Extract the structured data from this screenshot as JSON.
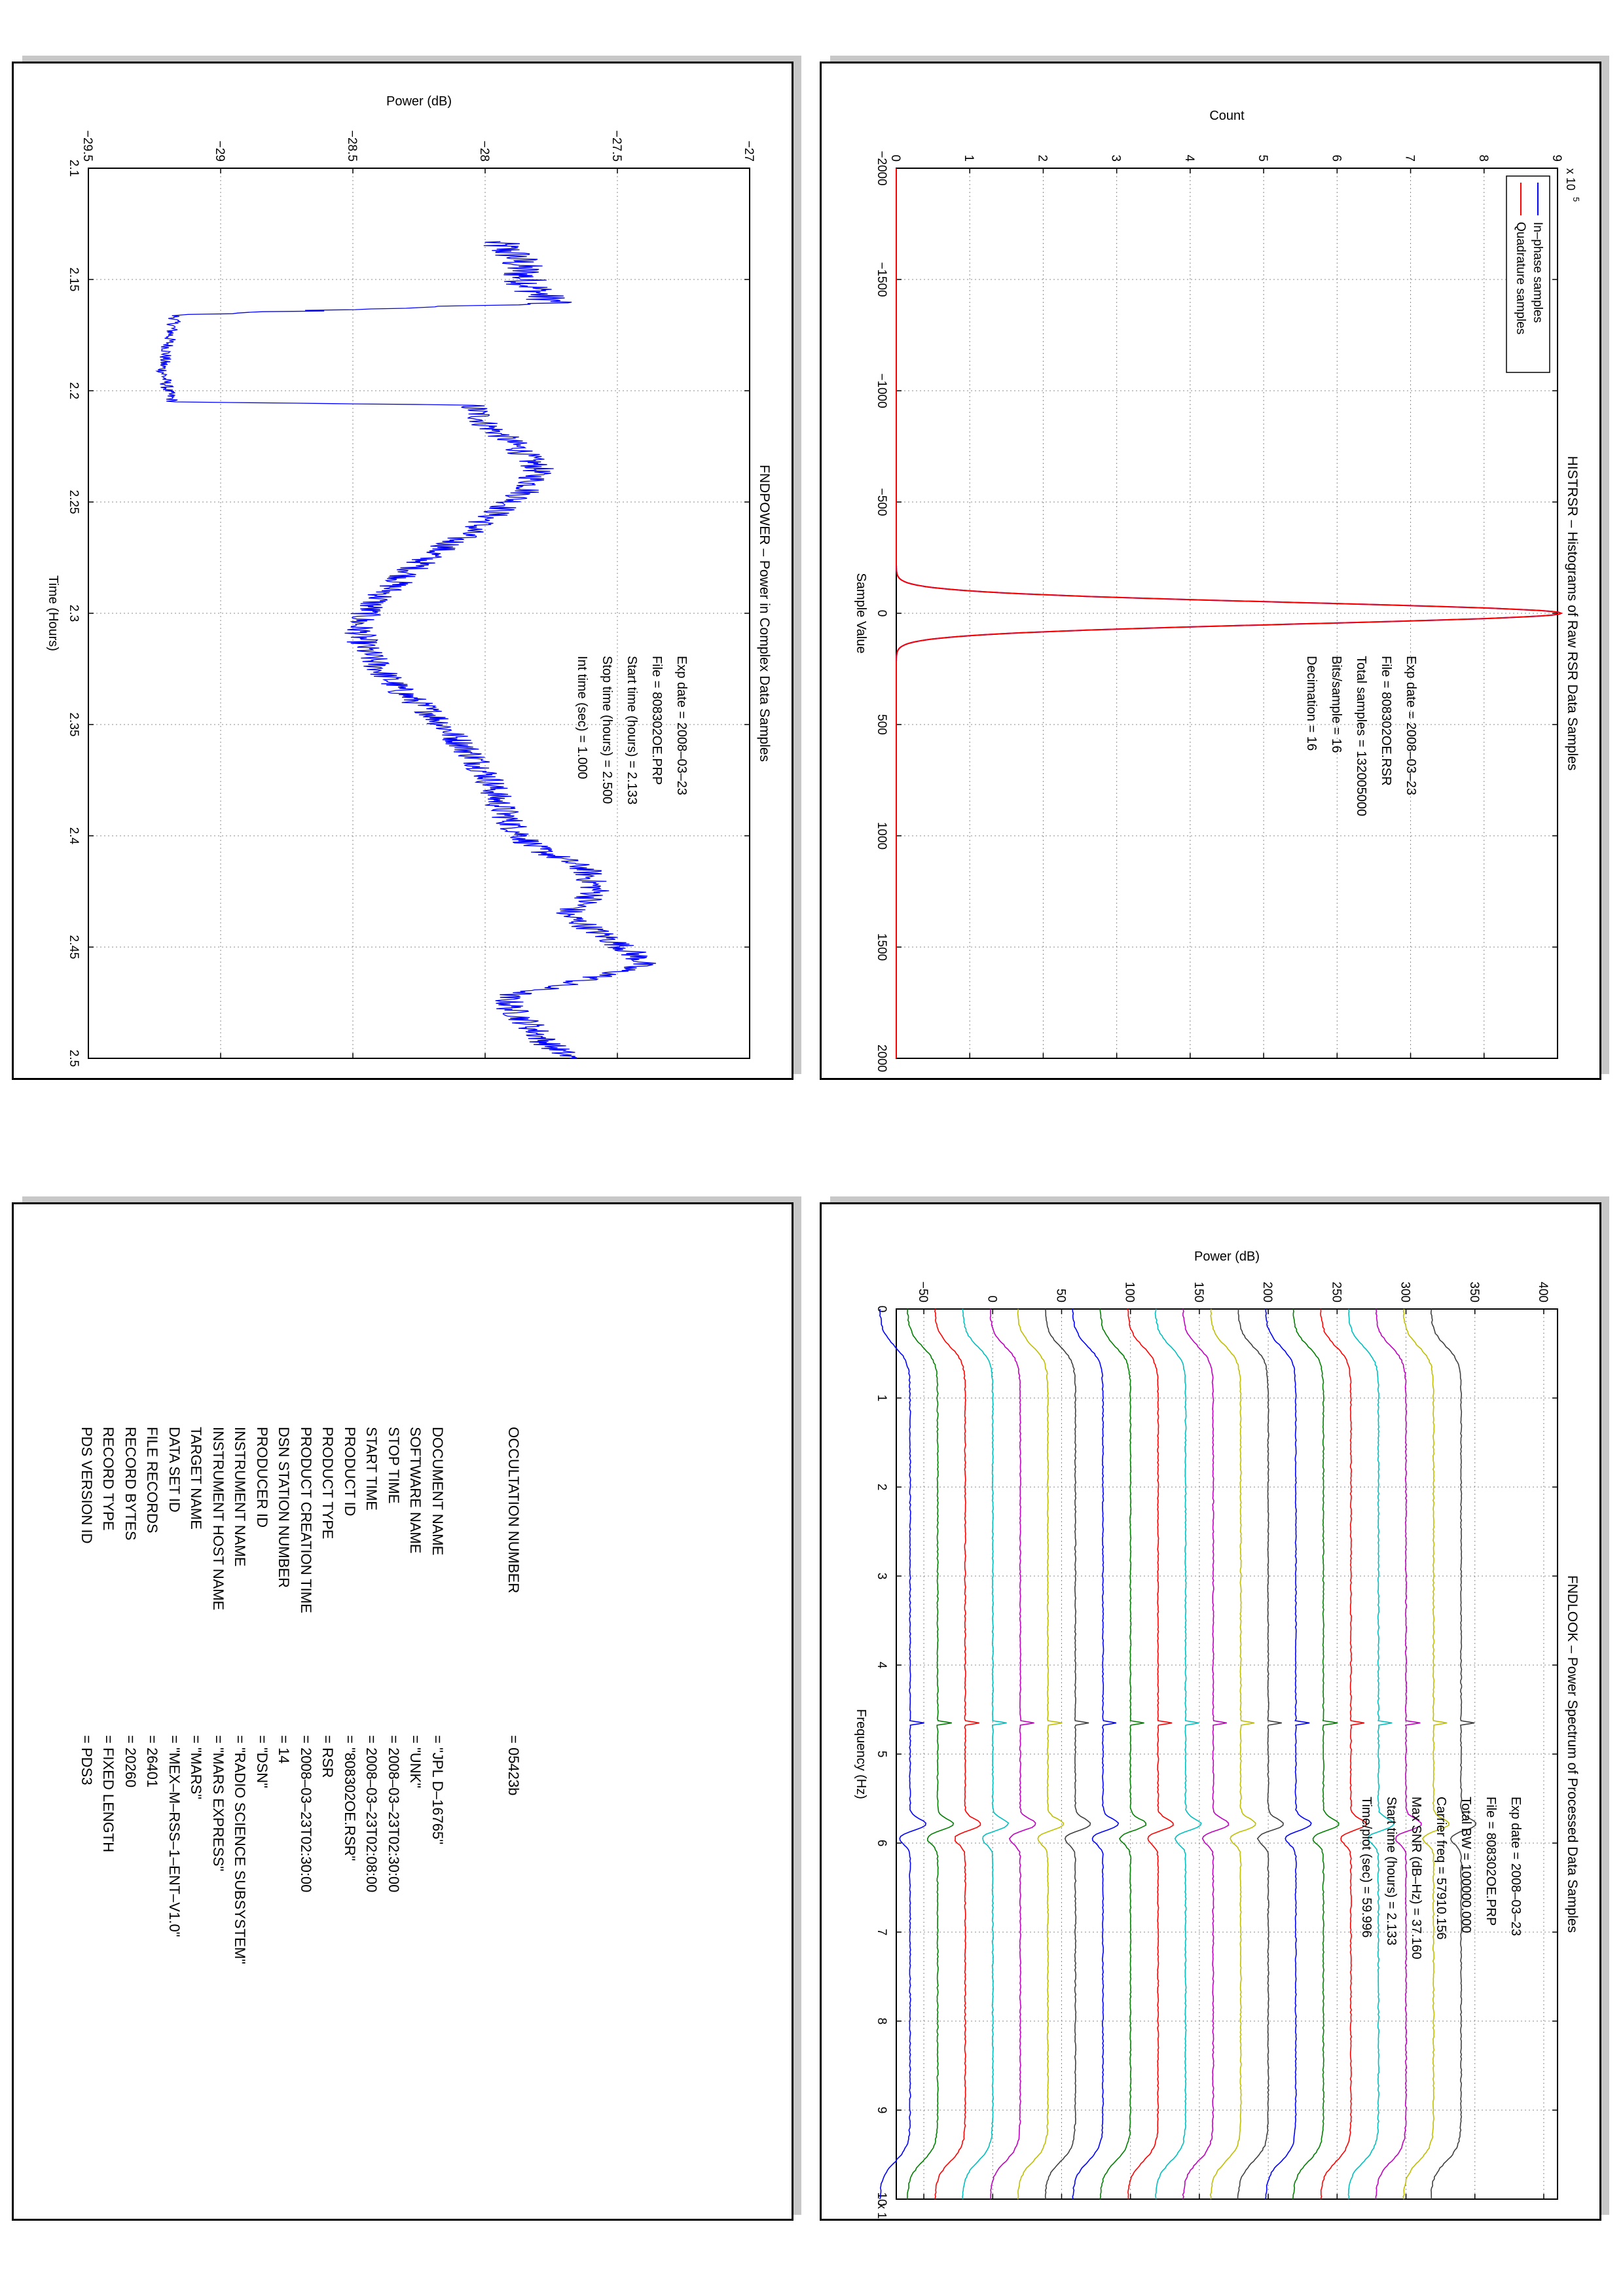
{
  "charts_meta": {
    "histogram": {
      "title": "HISTRSR – Histograms of Raw RSR Data Samples",
      "xlabel": "Sample Value",
      "ylabel": "Count",
      "exponent_label": "x 10",
      "exponent_power": "5",
      "legend": [
        "In–phase samples",
        "Quadrature samples"
      ],
      "info": [
        "Exp date = 2008–03–23",
        "File = 808302OE.RSR",
        "Total samples = 132005000",
        "Bits/sample   =        16",
        "Decimation    =        16"
      ]
    },
    "power": {
      "title": "FNDPOWER – Power in Complex Data Samples",
      "xlabel": "Time (Hours)",
      "ylabel": "Power (dB)",
      "info": [
        "Exp date = 2008–03–23",
        "File = 808302OE.PRP",
        "Start time (hours) =   2.133",
        "Stop time (hours) =   2.500",
        "Int time (sec) =       1.000"
      ]
    },
    "spectrum": {
      "title": "FNDLOOK – Power Spectrum of Processed Data Samples",
      "xlabel": "Frequency (Hz)",
      "ylabel": "Power (dB)",
      "exponent_label": "x 10",
      "exponent_power": "4",
      "info": [
        "Exp date = 2008–03–23",
        "File = 808302OE.PRP",
        "Total BW =     100000.000",
        "Carrier freq =    57910.156",
        "Max SNR (dB–Hz) =    37.160",
        "Start time (hours) =     2.133",
        "Time/plot (sec) =     59.996"
      ]
    }
  },
  "chart_data": [
    {
      "type": "line",
      "title": "HISTRSR – Histograms of Raw RSR Data Samples",
      "xlabel": "Sample Value",
      "ylabel": "Count",
      "xlim": [
        -2000,
        2000
      ],
      "ylim": [
        0,
        900000
      ],
      "xticks": [
        "−2000",
        "−1500",
        "−1000",
        "−500",
        "0",
        "500",
        "1000",
        "1500",
        "2000"
      ],
      "xtick_values": [
        -2000,
        -1500,
        -1000,
        -500,
        0,
        500,
        1000,
        1500,
        2000
      ],
      "yticks": [
        "0",
        "1",
        "2",
        "3",
        "4",
        "5",
        "6",
        "7",
        "8",
        "9"
      ],
      "ytick_values": [
        0,
        100000,
        200000,
        300000,
        400000,
        500000,
        600000,
        700000,
        800000,
        900000
      ],
      "grid": true,
      "legend_position": "top-left",
      "series": [
        {
          "name": "In–phase samples",
          "color": "#0000ff",
          "shape": "gaussian",
          "peak": 905000,
          "center": 0,
          "sigma": 48
        },
        {
          "name": "Quadrature samples",
          "color": "#ff0000",
          "shape": "gaussian",
          "peak": 905000,
          "center": 0,
          "sigma": 48
        }
      ]
    },
    {
      "type": "line",
      "title": "FNDPOWER – Power in Complex Data Samples",
      "xlabel": "Time (Hours)",
      "ylabel": "Power (dB)",
      "xlim": [
        2.1,
        2.5
      ],
      "ylim": [
        -29.5,
        -27
      ],
      "xticks": [
        "2.1",
        "2.15",
        "2.2",
        "2.25",
        "2.3",
        "2.35",
        "2.4",
        "2.45",
        "2.5"
      ],
      "xtick_values": [
        2.1,
        2.15,
        2.2,
        2.25,
        2.3,
        2.35,
        2.4,
        2.45,
        2.5
      ],
      "yticks": [
        "−29.5",
        "−29",
        "−28.5",
        "−28",
        "−27.5",
        "−27"
      ],
      "ytick_values": [
        -29.5,
        -29,
        -28.5,
        -28,
        -27.5,
        -27
      ],
      "grid": true,
      "series": [
        {
          "name": "",
          "color": "#0000ff",
          "x": [
            2.133,
            2.14,
            2.15,
            2.158,
            2.1605,
            2.166,
            2.18,
            2.19,
            2.2,
            2.205,
            2.2065,
            2.215,
            2.225,
            2.235,
            2.245,
            2.255,
            2.265,
            2.275,
            2.285,
            2.295,
            2.305,
            2.315,
            2.325,
            2.335,
            2.345,
            2.355,
            2.365,
            2.375,
            2.385,
            2.395,
            2.405,
            2.41,
            2.415,
            2.425,
            2.43,
            2.435,
            2.445,
            2.452,
            2.457,
            2.462,
            2.468,
            2.472,
            2.478,
            2.485,
            2.492,
            2.5
          ],
          "y": [
            -27.97,
            -27.88,
            -27.85,
            -27.78,
            -27.72,
            -29.17,
            -29.2,
            -29.22,
            -29.2,
            -29.18,
            -28.05,
            -28.0,
            -27.88,
            -27.8,
            -27.84,
            -27.96,
            -28.08,
            -28.22,
            -28.32,
            -28.42,
            -28.48,
            -28.46,
            -28.4,
            -28.32,
            -28.2,
            -28.12,
            -28.04,
            -27.98,
            -27.95,
            -27.9,
            -27.82,
            -27.72,
            -27.62,
            -27.58,
            -27.62,
            -27.7,
            -27.55,
            -27.45,
            -27.4,
            -27.52,
            -27.75,
            -27.92,
            -27.9,
            -27.83,
            -27.78,
            -27.68
          ]
        }
      ]
    },
    {
      "type": "line",
      "title": "FNDLOOK – Power Spectrum of Processed Data Samples",
      "xlabel": "Frequency (Hz)",
      "ylabel": "Power (dB)",
      "xlim": [
        0,
        100000
      ],
      "ylim": [
        -70,
        410
      ],
      "xticks": [
        "0",
        "1",
        "2",
        "3",
        "4",
        "5",
        "6",
        "7",
        "8",
        "9",
        "10"
      ],
      "xtick_values": [
        0,
        10000,
        20000,
        30000,
        40000,
        50000,
        60000,
        70000,
        80000,
        90000,
        100000
      ],
      "yticks": [
        "−50",
        "0",
        "50",
        "100",
        "150",
        "200",
        "250",
        "300",
        "350",
        "400"
      ],
      "ytick_values": [
        -50,
        0,
        50,
        100,
        150,
        200,
        250,
        300,
        350,
        400
      ],
      "grid": true,
      "carrier_freq": 57910.156,
      "spur_freq": 46400,
      "series_levels": [
        -60,
        -40,
        -20,
        0,
        20,
        40,
        60,
        80,
        100,
        120,
        140,
        160,
        180,
        200,
        220,
        240,
        260,
        280,
        300,
        320,
        340
      ],
      "series_colors": [
        "#0000ff",
        "#007f00",
        "#ff0000",
        "#00bfbf",
        "#bf00bf",
        "#bfbf00",
        "#3f3f3f",
        "#0000ff",
        "#007f00",
        "#ff0000",
        "#00bfbf",
        "#bf00bf",
        "#bfbf00",
        "#3f3f3f",
        "#0000ff",
        "#007f00",
        "#ff0000",
        "#00bfbf",
        "#bf00bf",
        "#bfbf00",
        "#3f3f3f"
      ]
    }
  ],
  "label_table": {
    "rows": [
      {
        "key": "PDS VERSION ID",
        "value": "= PDS3"
      },
      {
        "key": "RECORD TYPE",
        "value": "= FIXED LENGTH"
      },
      {
        "key": "RECORD BYTES",
        "value": "= 20260"
      },
      {
        "key": "FILE RECORDS",
        "value": "= 26401"
      },
      {
        "key": "DATA SET ID",
        "value": "= \"MEX–M–RSS–1–ENT–V1.0\""
      },
      {
        "key": "TARGET NAME",
        "value": "= \"MARS\""
      },
      {
        "key": "INSTRUMENT HOST NAME",
        "value": "= \"MARS EXPRESS\""
      },
      {
        "key": "INSTRUMENT NAME",
        "value": "= \"RADIO SCIENCE SUBSYSTEM\""
      },
      {
        "key": "PRODUCER ID",
        "value": "= \"DSN\""
      },
      {
        "key": "DSN STATION NUMBER",
        "value": "= 14"
      },
      {
        "key": "PRODUCT CREATION TIME",
        "value": "= 2008–03–23T02:30:00"
      },
      {
        "key": "PRODUCT TYPE",
        "value": "= RSR"
      },
      {
        "key": "PRODUCT ID",
        "value": "= \"808302OE.RSR\""
      },
      {
        "key": "START TIME",
        "value": "= 2008–03–23T02:08:00"
      },
      {
        "key": "STOP TIME",
        "value": "= 2008–03–23T02:30:00"
      },
      {
        "key": "SOFTWARE NAME",
        "value": "= \"UNK\""
      },
      {
        "key": "DOCUMENT NAME",
        "value": "= \"JPL D–16765\""
      }
    ],
    "occultation": {
      "key": "OCCULTATION NUMBER",
      "value": "= 05423b"
    }
  }
}
